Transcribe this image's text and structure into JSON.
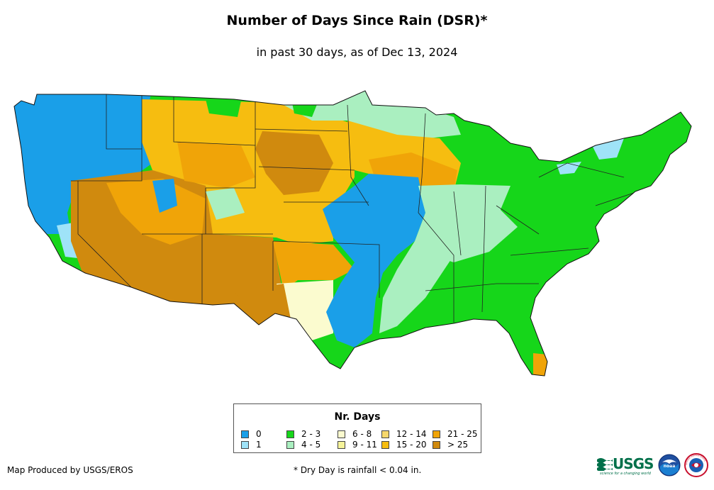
{
  "title": "Number of Days Since Rain (DSR)*",
  "subtitle": "in past 30 days, as of Dec 13, 2024",
  "legend": {
    "title": "Nr. Days",
    "items": [
      {
        "label": "0",
        "color": "#1a9fe8"
      },
      {
        "label": "1",
        "color": "#9fe3f8"
      },
      {
        "label": "2 - 3",
        "color": "#16d61a"
      },
      {
        "label": "4 - 5",
        "color": "#aaefc0"
      },
      {
        "label": "6 - 8",
        "color": "#fbfbcf"
      },
      {
        "label": "9 - 11",
        "color": "#f5f39a"
      },
      {
        "label": "12 - 14",
        "color": "#f7d86c"
      },
      {
        "label": "15 - 20",
        "color": "#f6bd10"
      },
      {
        "label": "21 - 25",
        "color": "#f0a408"
      },
      {
        "label": "> 25",
        "color": "#d08a0e"
      }
    ]
  },
  "credit": "Map Produced by USGS/EROS",
  "footnote": "* Dry Day is rainfall < 0.04 in.",
  "logos": {
    "usgs_text": "USGS",
    "usgs_tagline": "science for a changing world",
    "noaa_text": "noaa",
    "nws_text": "NATIONAL WEATHER SERVICE"
  }
}
